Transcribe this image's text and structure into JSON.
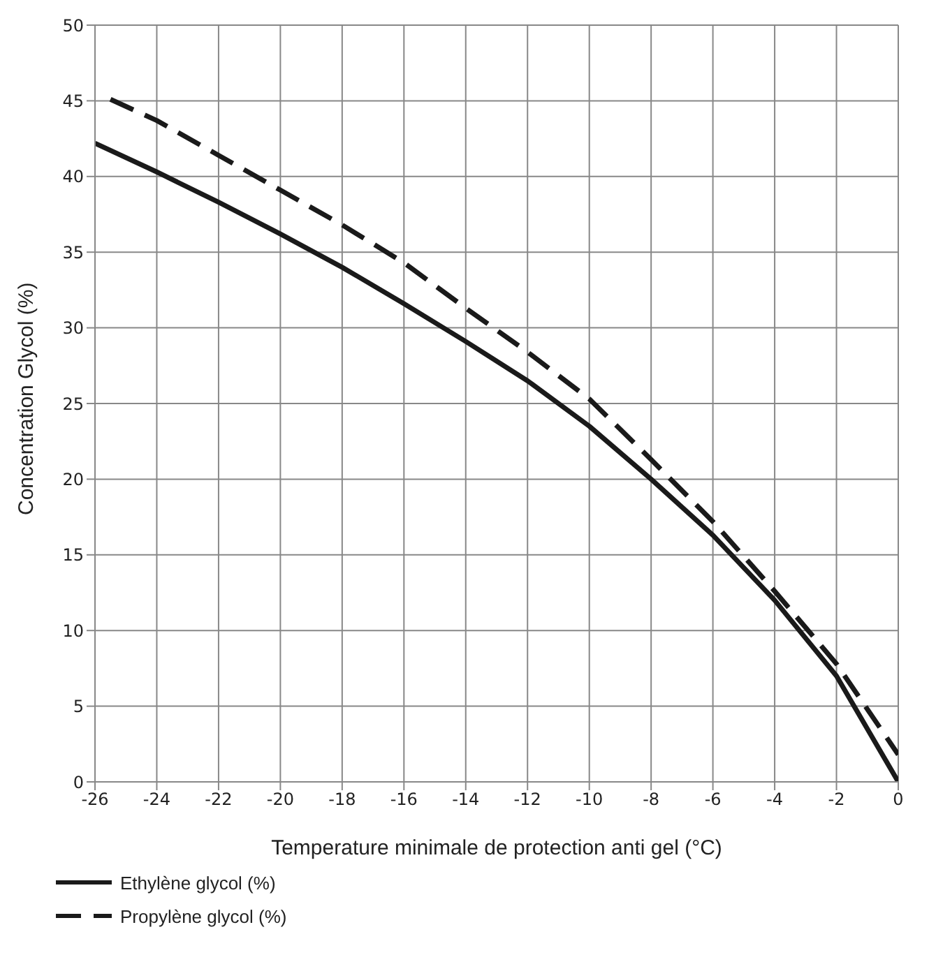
{
  "chart_data": {
    "type": "line",
    "xlabel": "Temperature minimale de protection anti gel  (°C)",
    "ylabel": "Concentration Glycol (%)",
    "xlim": [
      -26,
      0
    ],
    "xticks": [
      -26,
      -24,
      -22,
      -20,
      -18,
      -16,
      -14,
      -12,
      -10,
      -8,
      -6,
      -4,
      -2,
      0
    ],
    "ylim": [
      0,
      50
    ],
    "yticks": [
      0,
      5,
      10,
      15,
      20,
      25,
      30,
      35,
      40,
      45,
      50
    ],
    "grid": true,
    "legend": "bottom left",
    "marker": "none",
    "series": [
      {
        "name": "Ethylène glycol (%)",
        "color": "#1a1a1a",
        "line_style": "solid",
        "x": [
          -26,
          -24,
          -22,
          -20,
          -18,
          -16,
          -14,
          -12,
          -10,
          -8,
          -6,
          -4,
          -2,
          0
        ],
        "values": [
          42.2,
          40.3,
          38.3,
          36.2,
          34,
          31.6,
          29.1,
          26.5,
          23.5,
          20,
          16.3,
          12,
          7,
          0
        ]
      },
      {
        "name": "Propylène glycol (%)",
        "color": "#1a1a1a",
        "line_style": "dashed",
        "x": [
          -25.5,
          -24,
          -22,
          -20,
          -18,
          -16,
          -14,
          -12,
          -10,
          -8,
          -6,
          -4,
          -2,
          0
        ],
        "values": [
          45.1,
          43.7,
          41.4,
          39.1,
          36.8,
          34.3,
          31.3,
          28.4,
          25.3,
          21.3,
          17.2,
          12.6,
          7.8,
          1.8
        ]
      }
    ]
  }
}
